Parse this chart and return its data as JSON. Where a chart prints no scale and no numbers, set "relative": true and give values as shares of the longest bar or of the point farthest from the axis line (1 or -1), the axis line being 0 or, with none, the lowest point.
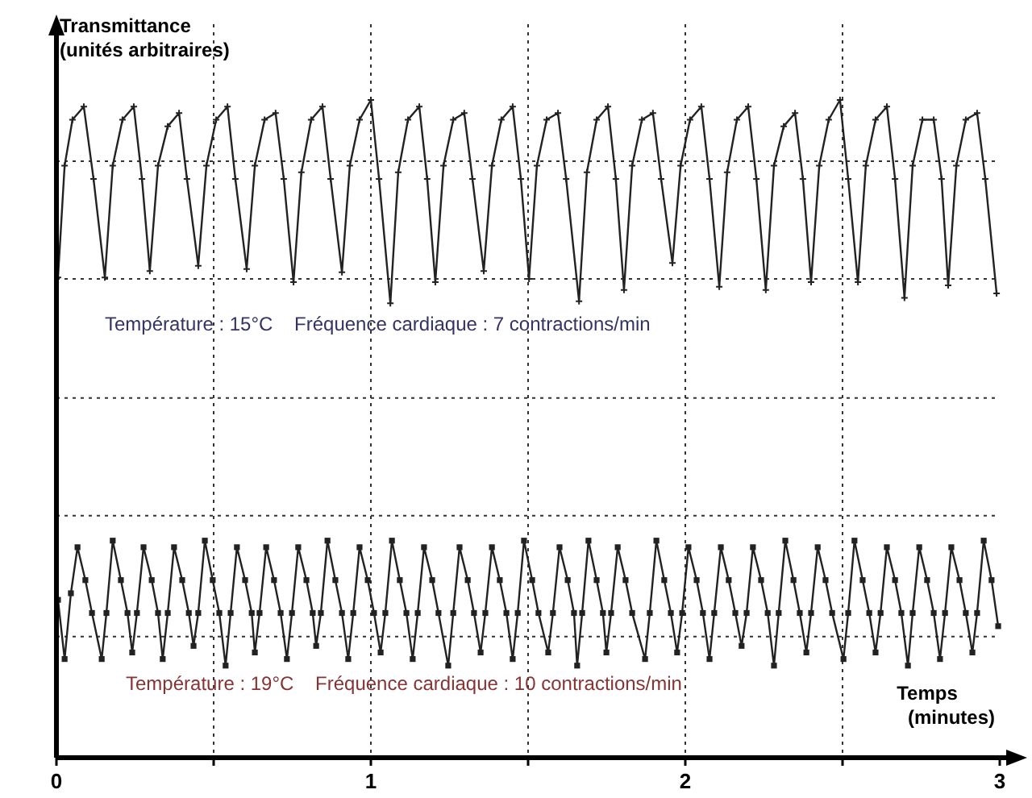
{
  "chart_data": {
    "type": "line",
    "relative": true,
    "ylabel": "Transmittance\n(unités arbitraires)",
    "xlabel": "Temps\n(minutes)",
    "xlim": [
      0,
      3
    ],
    "xticks": [
      0,
      {
        "value": 0.5,
        "label": null
      },
      1,
      {
        "value": 1.5,
        "label": null
      },
      2,
      {
        "value": 2.5,
        "label": null
      },
      3
    ],
    "grid": "x",
    "line_style": "solid",
    "annotations": [
      "Température : 15°C    Fréquence cardiaque : 7 contractions/min",
      "Température : 19°C    Fréquence cardiaque : 10 contractions/min"
    ],
    "ref_lines": [
      {
        "axis": "y",
        "value": 0.907,
        "line_style": "dotted"
      },
      {
        "axis": "y",
        "value": 0.728,
        "line_style": "dotted"
      },
      {
        "axis": "y",
        "value": 0.547,
        "line_style": "dotted"
      },
      {
        "axis": "y",
        "value": 0.368,
        "line_style": "dotted"
      },
      {
        "axis": "y",
        "value": 0.184,
        "line_style": "dotted"
      }
    ],
    "series": [
      {
        "color": "#222222",
        "marker": "cross",
        "x": [
          0.005,
          0.026,
          0.051,
          0.087,
          0.118,
          0.154,
          0.179,
          0.21,
          0.246,
          0.272,
          0.297,
          0.323,
          0.354,
          0.39,
          0.415,
          0.451,
          0.477,
          0.508,
          0.544,
          0.569,
          0.605,
          0.631,
          0.662,
          0.697,
          0.723,
          0.754,
          0.779,
          0.81,
          0.846,
          0.872,
          0.908,
          0.933,
          0.964,
          1.0,
          1.026,
          1.062,
          1.087,
          1.118,
          1.154,
          1.179,
          1.205,
          1.231,
          1.262,
          1.297,
          1.323,
          1.359,
          1.385,
          1.415,
          1.451,
          1.477,
          1.503,
          1.528,
          1.559,
          1.595,
          1.621,
          1.662,
          1.687,
          1.718,
          1.754,
          1.779,
          1.805,
          1.831,
          1.862,
          1.897,
          1.923,
          1.959,
          1.985,
          2.015,
          2.051,
          2.077,
          2.108,
          2.133,
          2.164,
          2.2,
          2.226,
          2.256,
          2.282,
          2.313,
          2.349,
          2.374,
          2.4,
          2.426,
          2.456,
          2.492,
          2.518,
          2.549,
          2.574,
          2.605,
          2.641,
          2.667,
          2.697,
          2.723,
          2.754,
          2.79,
          2.815,
          2.836,
          2.862,
          2.892,
          2.928,
          2.954,
          2.99
        ],
        "values": [
          0.73,
          0.9,
          0.97,
          0.99,
          0.88,
          0.73,
          0.9,
          0.97,
          0.99,
          0.88,
          0.74,
          0.9,
          0.96,
          0.98,
          0.88,
          0.748,
          0.9,
          0.97,
          0.99,
          0.88,
          0.743,
          0.9,
          0.97,
          0.98,
          0.88,
          0.723,
          0.89,
          0.97,
          0.99,
          0.88,
          0.738,
          0.9,
          0.97,
          1.0,
          0.88,
          0.691,
          0.89,
          0.97,
          0.99,
          0.88,
          0.723,
          0.9,
          0.97,
          0.98,
          0.88,
          0.74,
          0.9,
          0.97,
          0.99,
          0.88,
          0.728,
          0.9,
          0.97,
          0.98,
          0.88,
          0.694,
          0.89,
          0.97,
          0.99,
          0.88,
          0.711,
          0.9,
          0.97,
          0.98,
          0.88,
          0.752,
          0.9,
          0.97,
          0.99,
          0.88,
          0.716,
          0.89,
          0.97,
          0.99,
          0.88,
          0.711,
          0.9,
          0.96,
          0.98,
          0.88,
          0.723,
          0.9,
          0.97,
          1.0,
          0.88,
          0.723,
          0.9,
          0.97,
          0.99,
          0.88,
          0.699,
          0.9,
          0.97,
          0.97,
          0.88,
          0.718,
          0.9,
          0.97,
          0.98,
          0.88,
          0.706
        ]
      },
      {
        "color": "#222222",
        "marker": "square",
        "x": [
          0.005,
          0.026,
          0.046,
          0.067,
          0.092,
          0.113,
          0.144,
          0.159,
          0.179,
          0.205,
          0.226,
          0.241,
          0.256,
          0.277,
          0.303,
          0.323,
          0.338,
          0.354,
          0.374,
          0.4,
          0.421,
          0.436,
          0.451,
          0.472,
          0.497,
          0.518,
          0.538,
          0.554,
          0.574,
          0.6,
          0.621,
          0.631,
          0.646,
          0.667,
          0.692,
          0.713,
          0.733,
          0.749,
          0.769,
          0.795,
          0.815,
          0.826,
          0.841,
          0.862,
          0.887,
          0.908,
          0.928,
          0.944,
          0.964,
          0.99,
          1.01,
          1.031,
          1.046,
          1.067,
          1.092,
          1.113,
          1.133,
          1.149,
          1.169,
          1.195,
          1.215,
          1.246,
          1.262,
          1.282,
          1.308,
          1.328,
          1.349,
          1.364,
          1.385,
          1.41,
          1.431,
          1.451,
          1.467,
          1.487,
          1.513,
          1.533,
          1.564,
          1.579,
          1.6,
          1.626,
          1.646,
          1.656,
          1.672,
          1.692,
          1.718,
          1.738,
          1.749,
          1.764,
          1.785,
          1.81,
          1.831,
          1.872,
          1.887,
          1.908,
          1.933,
          1.954,
          1.974,
          1.99,
          2.01,
          2.036,
          2.056,
          2.077,
          2.092,
          2.113,
          2.138,
          2.159,
          2.179,
          2.195,
          2.215,
          2.241,
          2.262,
          2.282,
          2.297,
          2.318,
          2.344,
          2.364,
          2.385,
          2.4,
          2.421,
          2.446,
          2.467,
          2.503,
          2.518,
          2.538,
          2.564,
          2.585,
          2.605,
          2.621,
          2.641,
          2.667,
          2.687,
          2.708,
          2.723,
          2.744,
          2.769,
          2.79,
          2.81,
          2.826,
          2.846,
          2.872,
          2.892,
          2.913,
          2.928,
          2.949,
          2.974,
          2.995
        ],
        "values": [
          0.24,
          0.15,
          0.25,
          0.32,
          0.27,
          0.22,
          0.15,
          0.22,
          0.33,
          0.27,
          0.22,
          0.16,
          0.22,
          0.32,
          0.27,
          0.22,
          0.15,
          0.22,
          0.32,
          0.27,
          0.22,
          0.17,
          0.22,
          0.33,
          0.27,
          0.22,
          0.14,
          0.22,
          0.32,
          0.27,
          0.22,
          0.16,
          0.22,
          0.32,
          0.27,
          0.22,
          0.15,
          0.22,
          0.32,
          0.27,
          0.22,
          0.17,
          0.22,
          0.33,
          0.27,
          0.22,
          0.15,
          0.22,
          0.32,
          0.27,
          0.22,
          0.16,
          0.22,
          0.33,
          0.27,
          0.22,
          0.15,
          0.22,
          0.32,
          0.27,
          0.22,
          0.14,
          0.22,
          0.32,
          0.27,
          0.22,
          0.16,
          0.22,
          0.32,
          0.27,
          0.22,
          0.15,
          0.22,
          0.33,
          0.27,
          0.22,
          0.16,
          0.22,
          0.32,
          0.27,
          0.22,
          0.14,
          0.22,
          0.33,
          0.27,
          0.22,
          0.16,
          0.22,
          0.32,
          0.27,
          0.22,
          0.15,
          0.22,
          0.33,
          0.27,
          0.22,
          0.16,
          0.22,
          0.32,
          0.27,
          0.22,
          0.15,
          0.22,
          0.32,
          0.27,
          0.22,
          0.17,
          0.22,
          0.32,
          0.27,
          0.22,
          0.14,
          0.22,
          0.33,
          0.27,
          0.22,
          0.16,
          0.22,
          0.32,
          0.27,
          0.22,
          0.15,
          0.22,
          0.33,
          0.27,
          0.22,
          0.16,
          0.22,
          0.32,
          0.27,
          0.22,
          0.14,
          0.22,
          0.32,
          0.27,
          0.22,
          0.15,
          0.22,
          0.32,
          0.27,
          0.22,
          0.16,
          0.22,
          0.33,
          0.27,
          0.2
        ]
      }
    ]
  }
}
